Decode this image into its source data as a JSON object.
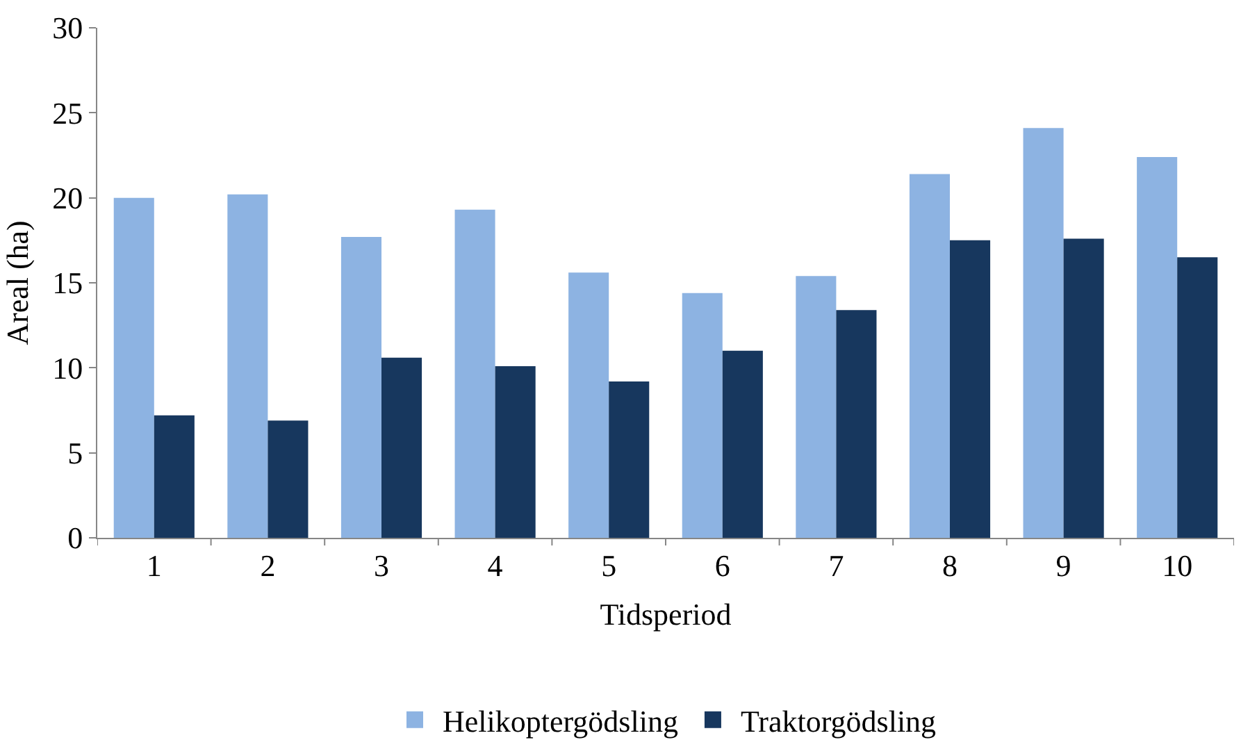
{
  "chart_data": {
    "type": "bar",
    "xlabel": "Tidsperiod",
    "ylabel": "Areal (ha)",
    "categories": [
      "1",
      "2",
      "3",
      "4",
      "5",
      "6",
      "7",
      "8",
      "9",
      "10"
    ],
    "series": [
      {
        "name": "Helikoptergödsling",
        "color": "#8db3e2",
        "values": [
          20.0,
          20.2,
          17.7,
          19.3,
          15.6,
          14.4,
          15.4,
          21.4,
          24.1,
          22.4
        ]
      },
      {
        "name": "Traktorgödsling",
        "color": "#17375e",
        "values": [
          7.2,
          6.9,
          10.6,
          10.1,
          9.2,
          11.0,
          13.4,
          17.5,
          17.6,
          16.5
        ]
      }
    ],
    "ylim": [
      0,
      30
    ],
    "yticks": [
      0,
      5,
      10,
      15,
      20,
      25,
      30
    ],
    "legend": "bottom"
  }
}
